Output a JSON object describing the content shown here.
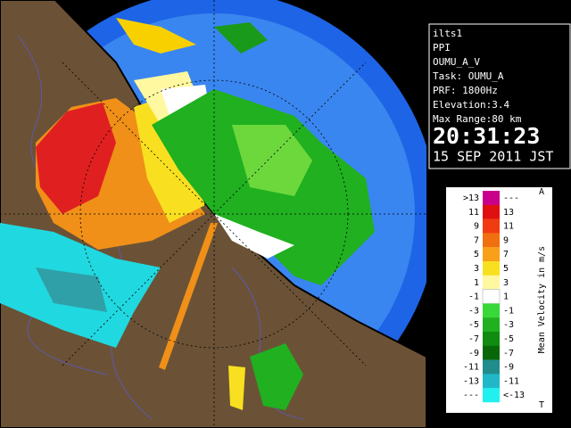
{
  "panel": {
    "lines": [
      "ilts1",
      "PPI",
      "OUMU_A_V",
      "Task: OUMU_A",
      "PRF: 1800Hz",
      "Elevation:3.4",
      "Max Range:80 km"
    ],
    "time": "20:31:23",
    "date": "15 SEP 2011 JST"
  },
  "legend": {
    "title": "Mean Velocity in m/s",
    "top_marker": "A",
    "bottom_marker": "T",
    "rows": [
      {
        "low": ">13",
        "high": "---"
      },
      {
        "low": "11",
        "high": "13"
      },
      {
        "low": "9",
        "high": "11"
      },
      {
        "low": "7",
        "high": "9"
      },
      {
        "low": "5",
        "high": "7"
      },
      {
        "low": "3",
        "high": "5"
      },
      {
        "low": "1",
        "high": "3"
      },
      {
        "low": "-1",
        "high": "1"
      },
      {
        "low": "-3",
        "high": "-1"
      },
      {
        "low": "-5",
        "high": "-3"
      },
      {
        "low": "-7",
        "high": "-5"
      },
      {
        "low": "-9",
        "high": "-7"
      },
      {
        "low": "-11",
        "high": "-9"
      },
      {
        "low": "-13",
        "high": "-11"
      },
      {
        "low": "---",
        "high": "<-13"
      }
    ]
  }
}
